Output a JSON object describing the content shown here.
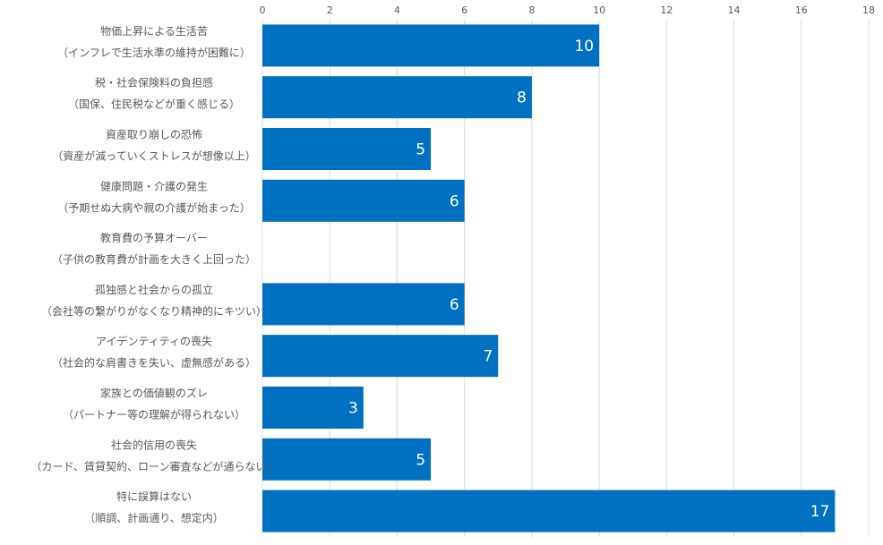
{
  "chart_data": {
    "type": "bar",
    "orientation": "horizontal",
    "categories": [
      [
        "物価上昇による生活苦",
        "（インフレで生活水準の維持が困難に）"
      ],
      [
        "税・社会保険料の負担感",
        "（国保、住民税などが重く感じる）"
      ],
      [
        "資産取り崩しの恐怖",
        "（資産が減っていくストレスが想像以上）"
      ],
      [
        "健康問題・介護の発生",
        "（予期せぬ大病や親の介護が始まった）"
      ],
      [
        "教育費の予算オーバー",
        "（子供の教育費が計画を大きく上回った）"
      ],
      [
        "孤独感と社会からの孤立",
        "（会社等の繋がりがなくなり精神的にキツい）"
      ],
      [
        "アイデンティティの喪失",
        "（社会的な肩書きを失い、虚無感がある）"
      ],
      [
        "家族との価値観のズレ",
        "（パートナー等の理解が得られない）"
      ],
      [
        "社会的信用の喪失",
        "（カード、賃貸契約、ローン審査などが通らない）"
      ],
      [
        "特に誤算はない",
        "（順調、計画通り、想定内）"
      ]
    ],
    "values": [
      10,
      8,
      5,
      6,
      0,
      6,
      7,
      3,
      5,
      17
    ],
    "data_labels": [
      "10",
      "8",
      "5",
      "6",
      "",
      "6",
      "7",
      "3",
      "5",
      "17"
    ],
    "x_ticks": [
      "0",
      "2",
      "4",
      "6",
      "8",
      "10",
      "12",
      "14",
      "16",
      "18"
    ],
    "xlim": [
      0,
      18
    ],
    "grid": true,
    "x_axis_position": "top",
    "legend": "none",
    "bar_color": "#0070c0",
    "grid_color": "#d9d9d9",
    "label_color": "#595959"
  }
}
